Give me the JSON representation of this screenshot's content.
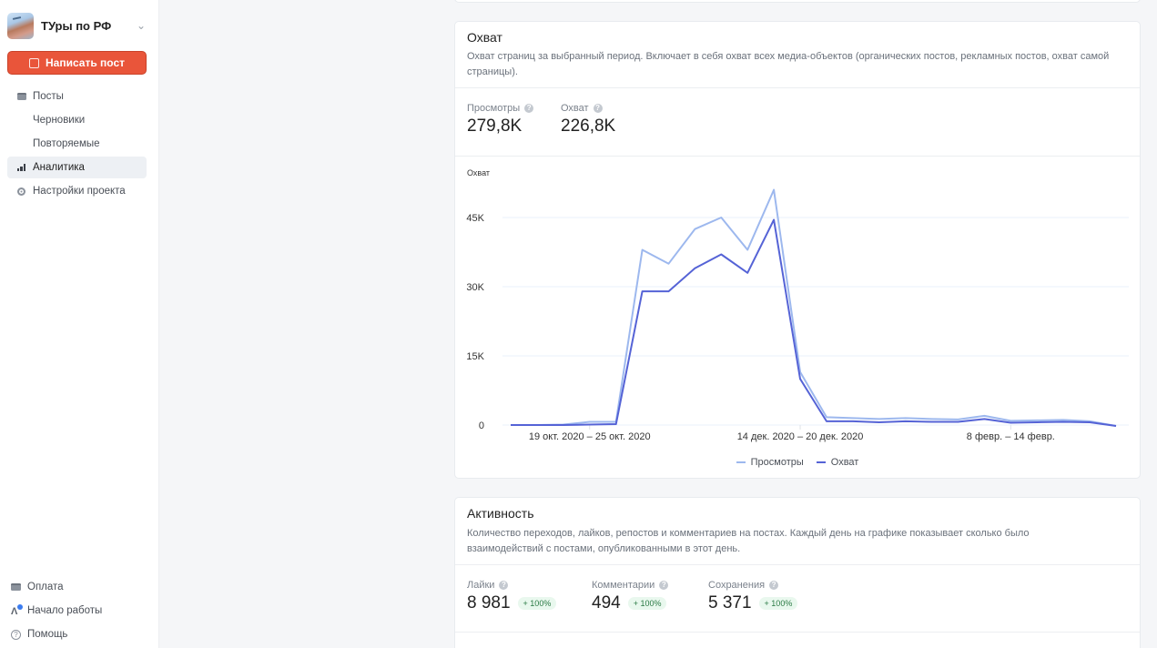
{
  "sidebar": {
    "project_name": "ТУры по РФ",
    "write_button": "Написать пост",
    "items": [
      {
        "label": "Посты",
        "icon": "calendar-icon"
      },
      {
        "label": "Черновики"
      },
      {
        "label": "Повторяемые"
      },
      {
        "label": "Аналитика",
        "icon": "bar-chart-icon",
        "active": true
      },
      {
        "label": "Настройки проекта",
        "icon": "gear-icon"
      }
    ],
    "bottom_items": [
      {
        "label": "Оплата",
        "icon": "credit-card-icon"
      },
      {
        "label": "Начало работы",
        "icon": "getting-started-icon"
      },
      {
        "label": "Помощь",
        "icon": "help-icon"
      }
    ]
  },
  "reach": {
    "title": "Охват",
    "description": "Охват страниц за выбранный период. Включает в себя охват всех медиа-объектов (органических постов, рекламных постов, охват самой страницы).",
    "metrics": [
      {
        "label": "Просмотры",
        "value": "279,8K"
      },
      {
        "label": "Охват",
        "value": "226,8K"
      }
    ]
  },
  "activity": {
    "title": "Активность",
    "description": "Количество переходов, лайков, репостов и комментариев на постах. Каждый день на графике показывает сколько было взаимодействий с постами, опубликованными в этот день.",
    "metrics": [
      {
        "label": "Лайки",
        "value": "8 981",
        "change": "+ 100%"
      },
      {
        "label": "Комментарии",
        "value": "494",
        "change": "+ 100%"
      },
      {
        "label": "Сохранения",
        "value": "5 371",
        "change": "+ 100%"
      }
    ]
  },
  "colors": {
    "accent": "#e9553a",
    "views_line": "#9db8ee",
    "reach_line": "#5563d6",
    "positive_badge": "#2a7a44"
  },
  "chart_data": {
    "type": "line",
    "title": "Охват",
    "ylabel": "Охват",
    "xlabel": "",
    "ylim": [
      0,
      52000
    ],
    "yticks": [
      0,
      15000,
      30000,
      45000
    ],
    "ytick_labels": [
      "0",
      "15K",
      "30K",
      "45K"
    ],
    "xtick_labels": [
      {
        "index": 3,
        "label": "19 окт. 2020 – 25 окт. 2020"
      },
      {
        "index": 11,
        "label": "14 дек. 2020 – 20 дек. 2020"
      },
      {
        "index": 19,
        "label": "8 февр. – 14 февр."
      }
    ],
    "grid": true,
    "legend": "bottom-center",
    "series": [
      {
        "name": "Просмотры",
        "color": "#9db8ee",
        "values": [
          0,
          0,
          100,
          700,
          700,
          38000,
          35000,
          42500,
          45000,
          38000,
          51000,
          11500,
          1700,
          1500,
          1300,
          1500,
          1300,
          1200,
          2000,
          900,
          1000,
          1100,
          800,
          -200
        ]
      },
      {
        "name": "Охват",
        "color": "#5563d6",
        "values": [
          0,
          0,
          0,
          100,
          200,
          29000,
          29000,
          34000,
          37000,
          33000,
          44500,
          10000,
          800,
          800,
          600,
          800,
          700,
          700,
          1300,
          500,
          600,
          700,
          600,
          -200
        ]
      }
    ]
  }
}
